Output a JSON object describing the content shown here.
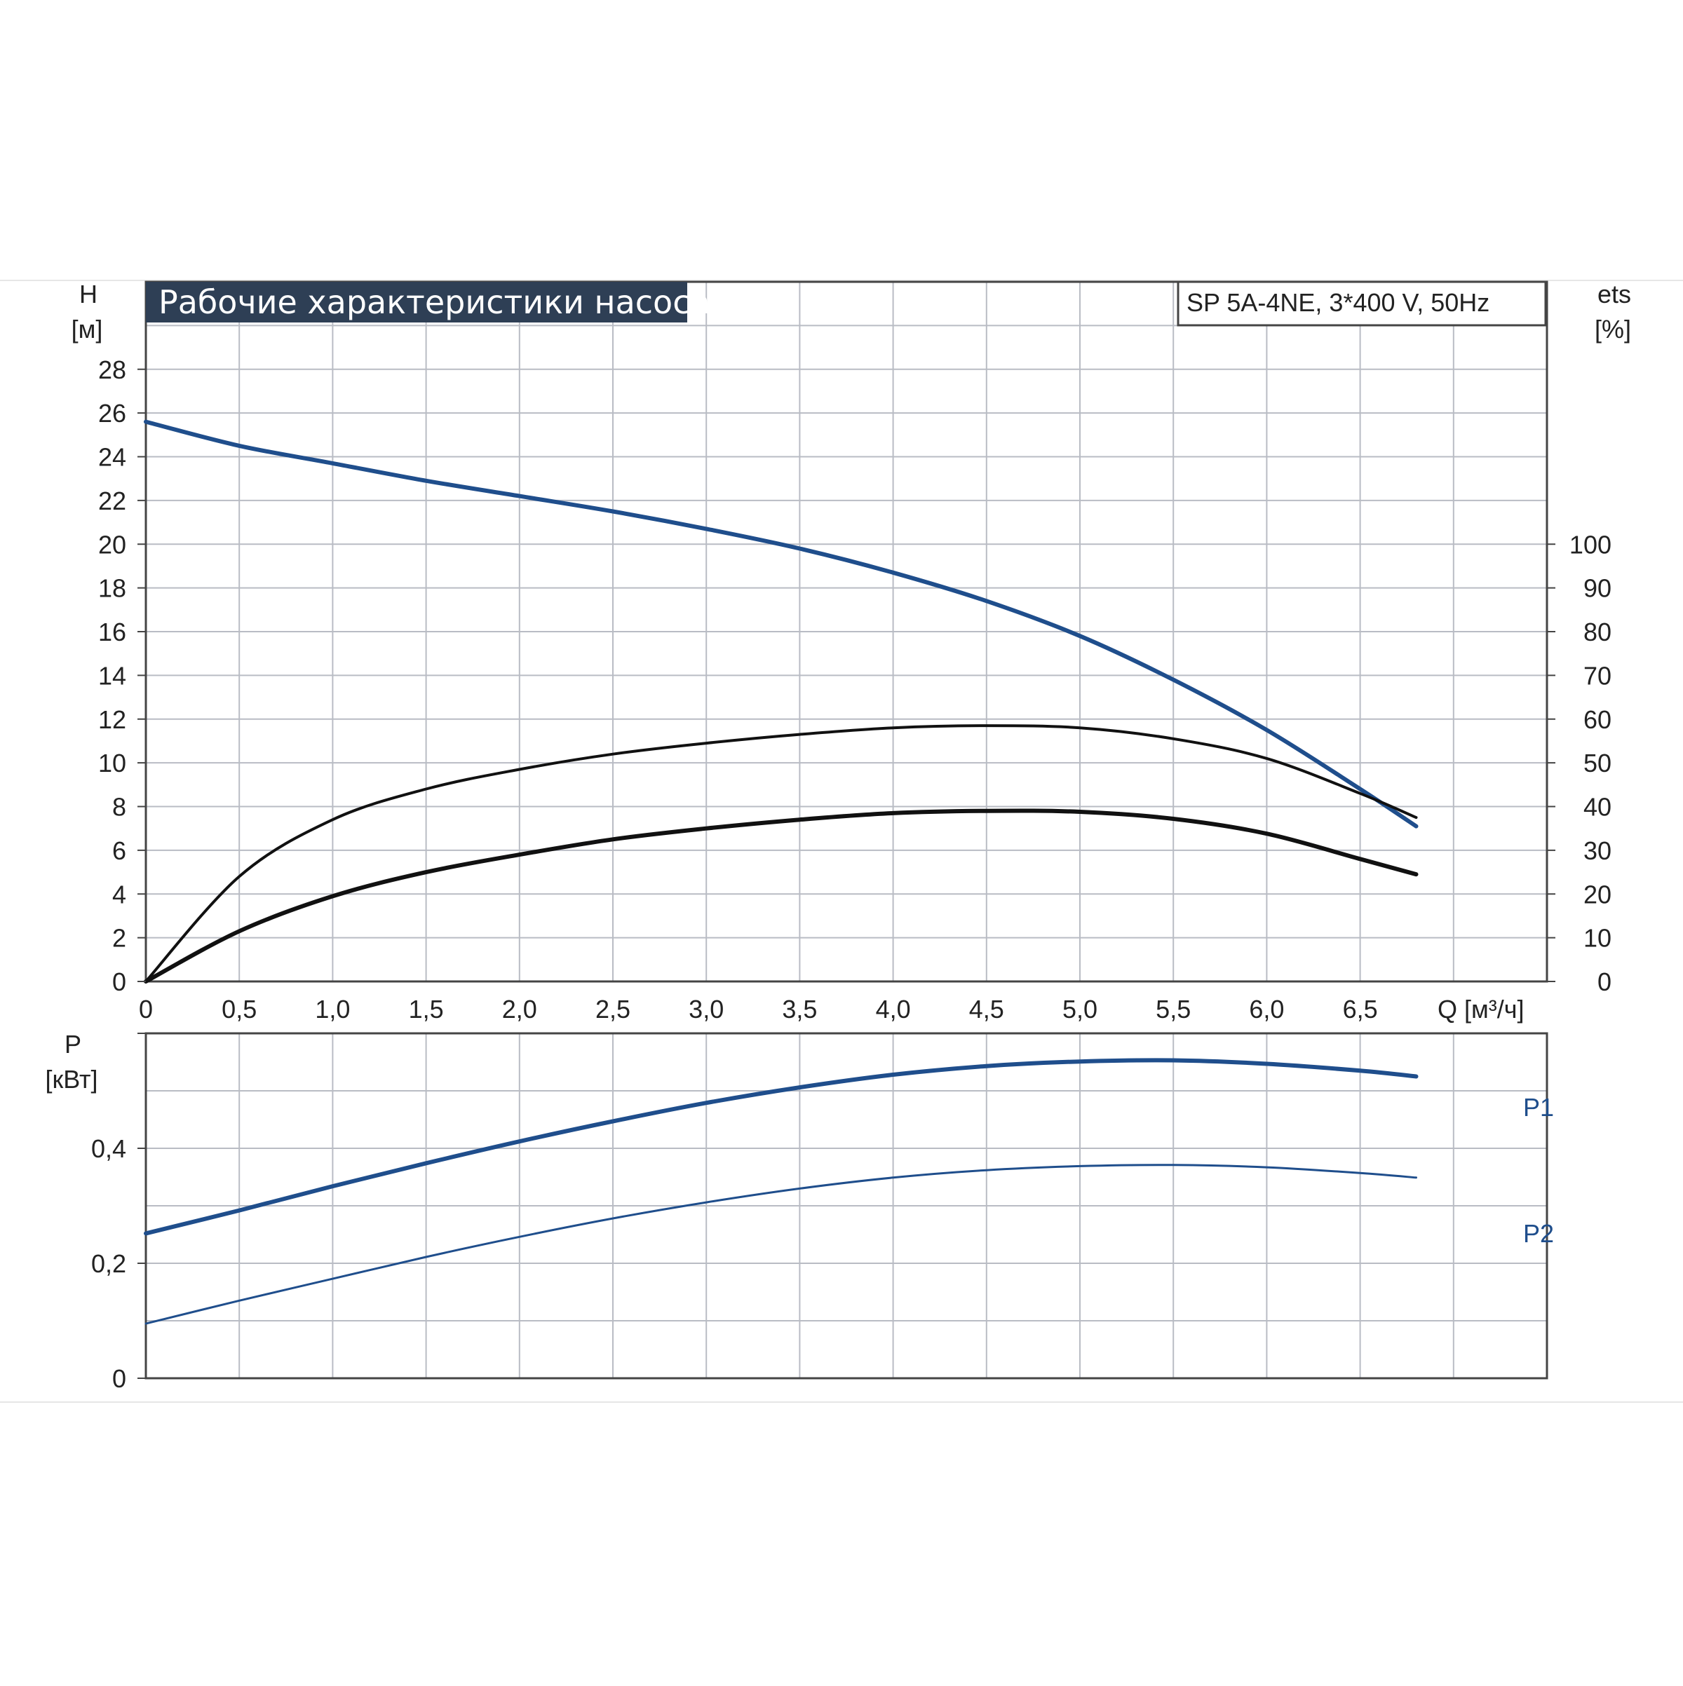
{
  "chart_data": [
    {
      "type": "line",
      "title": "Рабочие характеристики насоса",
      "model_label": "SP 5A-4NE, 3*400 V, 50Hz",
      "y_axis_label": "H",
      "y_axis_unit": "[м]",
      "y2_axis_label": "ets",
      "y2_axis_unit": "[%]",
      "x_axis_label": "Q [м³/ч]",
      "x_tick_labels": [
        "0",
        "0,5",
        "1,0",
        "1,5",
        "2,0",
        "2,5",
        "3,0",
        "3,5",
        "4,0",
        "4,5",
        "5,0",
        "5,5",
        "6,0",
        "6,5"
      ],
      "y_tick_labels": [
        "0",
        "2",
        "4",
        "6",
        "8",
        "10",
        "12",
        "14",
        "16",
        "18",
        "20",
        "22",
        "24",
        "26",
        "28"
      ],
      "y2_tick_labels": [
        "0",
        "10",
        "20",
        "30",
        "40",
        "50",
        "60",
        "70",
        "80",
        "90",
        "100"
      ],
      "xlim": [
        0,
        7.5
      ],
      "ylim": [
        0,
        32
      ],
      "y2lim": [
        0,
        160
      ],
      "grid": true,
      "series": [
        {
          "axis": "H",
          "color": "#1f4e8c",
          "stroke": "thick",
          "x": [
            0,
            0.5,
            1.0,
            1.5,
            2.0,
            2.5,
            3.0,
            3.5,
            4.0,
            4.5,
            5.0,
            5.5,
            6.0,
            6.5,
            6.8
          ],
          "y": [
            25.6,
            24.5,
            23.7,
            22.9,
            22.2,
            21.5,
            20.7,
            19.8,
            18.7,
            17.4,
            15.8,
            13.8,
            11.5,
            8.8,
            7.1
          ]
        },
        {
          "axis": "ets",
          "color": "#111111",
          "stroke": "medium",
          "x": [
            0,
            0.5,
            1.0,
            1.5,
            2.0,
            2.5,
            3.0,
            3.5,
            4.0,
            4.5,
            5.0,
            5.5,
            6.0,
            6.5,
            6.8
          ],
          "y": [
            0,
            24,
            37,
            44,
            48.5,
            52,
            54.5,
            56.5,
            58,
            58.5,
            58,
            55.5,
            51,
            43,
            37.5
          ]
        },
        {
          "axis": "ets",
          "color": "#111111",
          "stroke": "thick",
          "x": [
            0,
            0.5,
            1.0,
            1.5,
            2.0,
            2.5,
            3.0,
            3.5,
            4.0,
            4.5,
            5.0,
            5.5,
            6.0,
            6.5,
            6.8
          ],
          "y": [
            0,
            11.5,
            19.5,
            25,
            29,
            32.5,
            35,
            37,
            38.5,
            39,
            38.8,
            37.2,
            33.8,
            28,
            24.5
          ]
        }
      ]
    },
    {
      "type": "line",
      "y_axis_label": "P",
      "y_axis_unit": "[кВт]",
      "y_tick_labels": [
        "0",
        "0,2",
        "0,4"
      ],
      "xlim": [
        0,
        7.5
      ],
      "ylim": [
        0,
        0.6
      ],
      "grid": true,
      "series": [
        {
          "name": "P1",
          "color": "#1f4e8c",
          "stroke": "thick",
          "x": [
            0,
            0.5,
            1.0,
            1.5,
            2.0,
            2.5,
            3.0,
            3.5,
            4.0,
            4.5,
            5.0,
            5.5,
            6.0,
            6.5,
            6.8
          ],
          "y": [
            0.252,
            0.292,
            0.334,
            0.374,
            0.412,
            0.447,
            0.479,
            0.506,
            0.528,
            0.543,
            0.551,
            0.553,
            0.547,
            0.535,
            0.525
          ]
        },
        {
          "name": "P2",
          "color": "#1f4e8c",
          "stroke": "thin",
          "x": [
            0,
            0.5,
            1.0,
            1.5,
            2.0,
            2.5,
            3.0,
            3.5,
            4.0,
            4.5,
            5.0,
            5.5,
            6.0,
            6.5,
            6.8
          ],
          "y": [
            0.095,
            0.135,
            0.173,
            0.211,
            0.246,
            0.278,
            0.306,
            0.33,
            0.349,
            0.362,
            0.369,
            0.371,
            0.367,
            0.357,
            0.349
          ]
        }
      ]
    }
  ]
}
